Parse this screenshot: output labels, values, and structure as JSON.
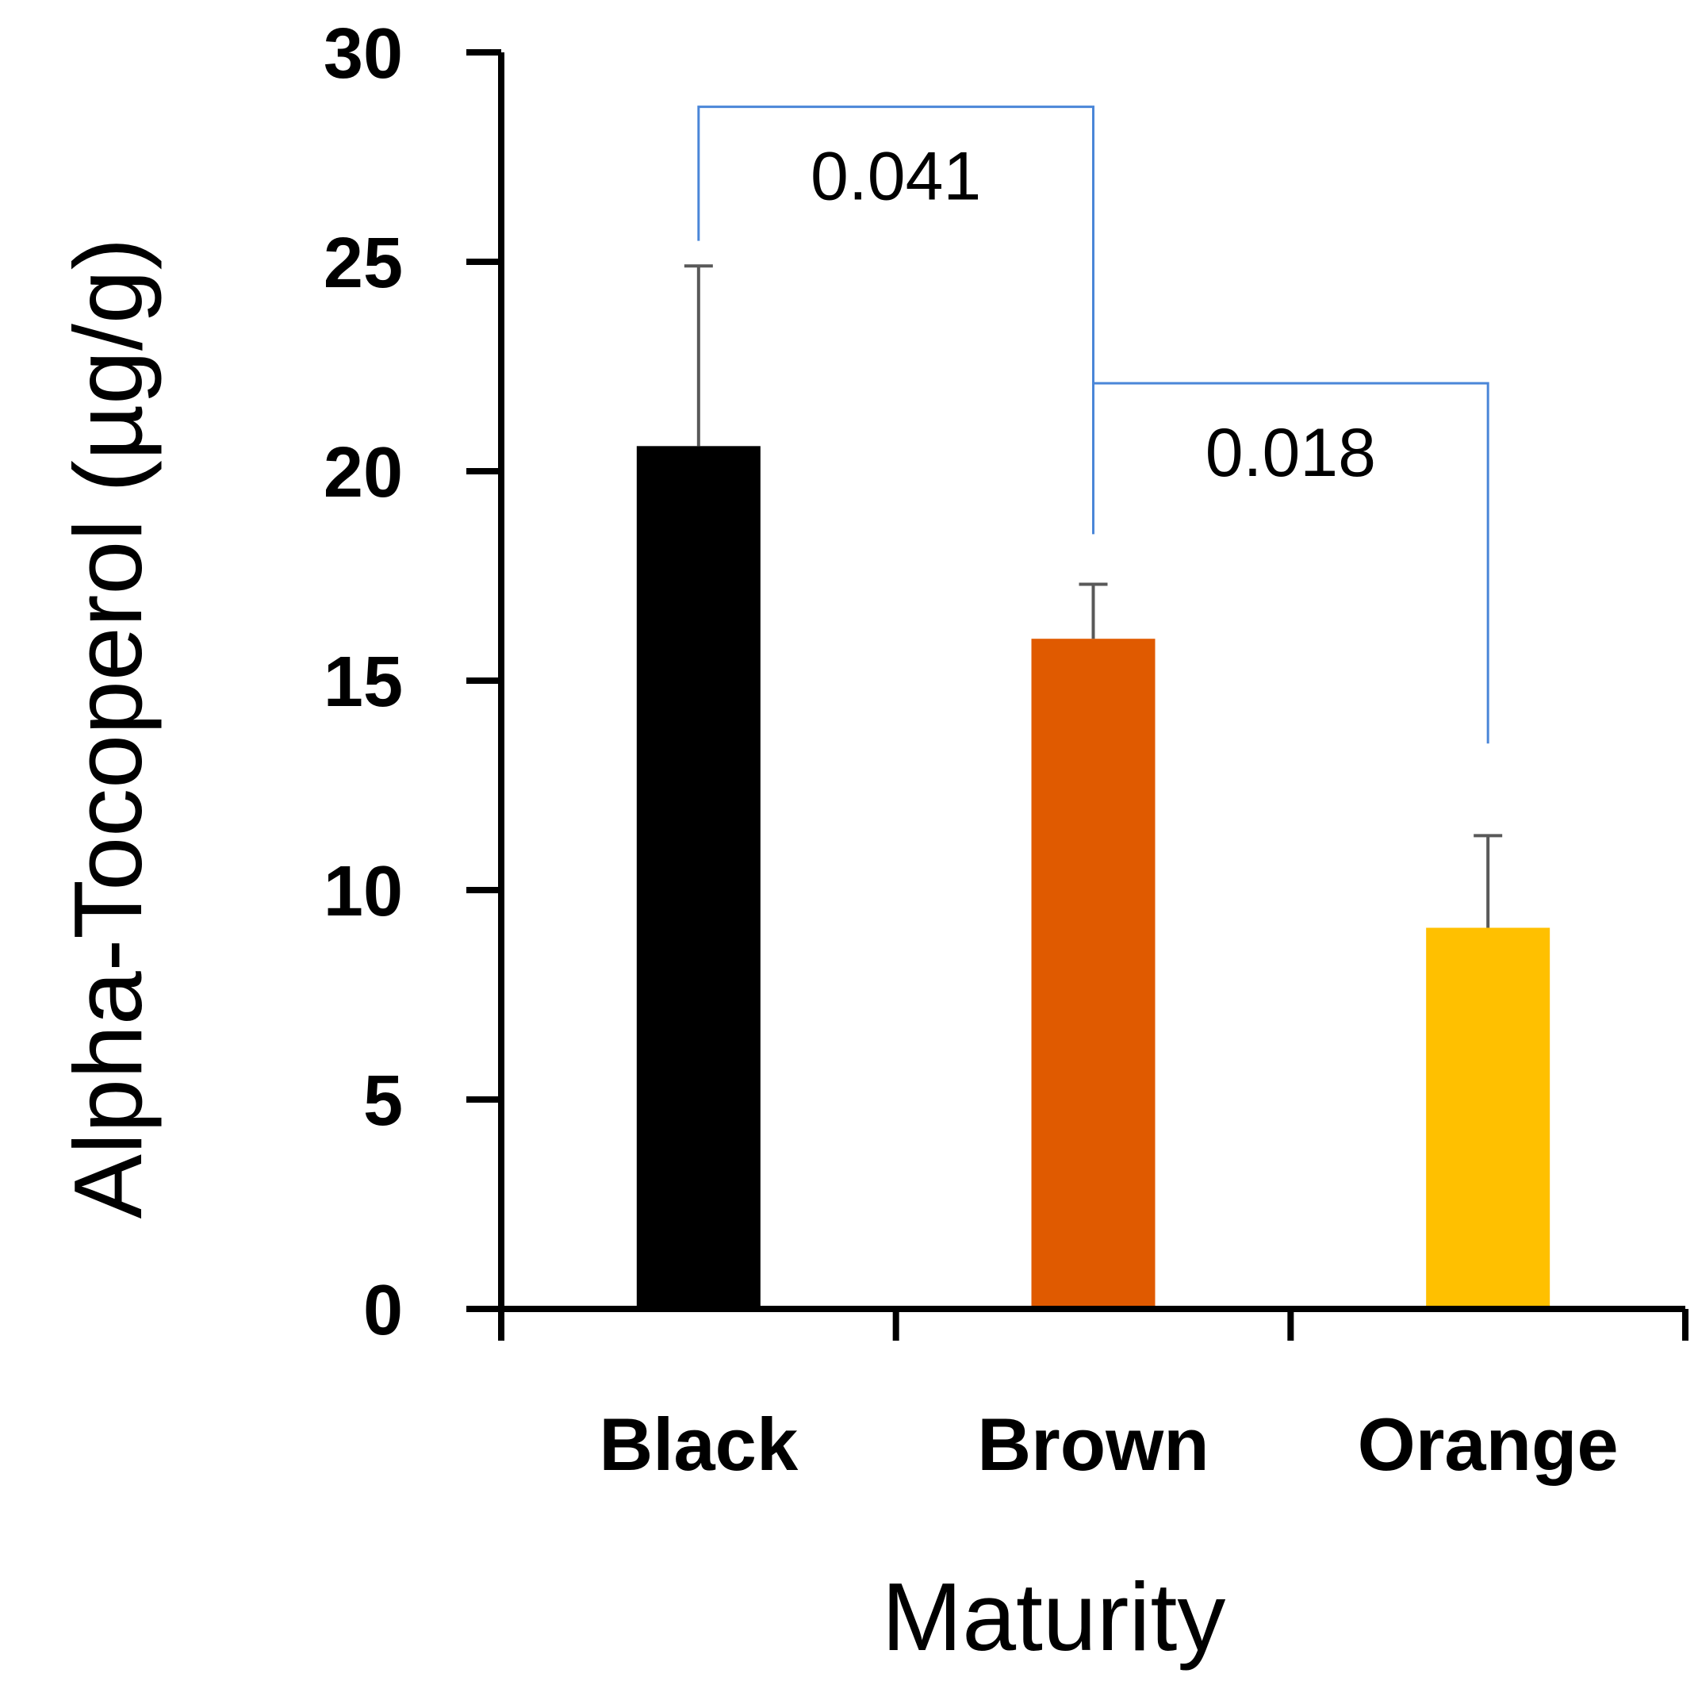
{
  "chart_data": {
    "type": "bar",
    "title": "",
    "xlabel": "Maturity",
    "ylabel": "Alpha-Tocoperol (µg/g)",
    "categories": [
      "Black",
      "Brown",
      "Orange"
    ],
    "values": [
      20.6,
      16.0,
      9.1
    ],
    "error_upper": [
      4.3,
      1.3,
      2.2
    ],
    "ylim": [
      0,
      30
    ],
    "yticks": [
      "0",
      "5",
      "10",
      "15",
      "20",
      "25",
      "30"
    ],
    "grid": false,
    "legend": "none",
    "bar_colors": [
      "#000000",
      "#e05a00",
      "#ffc000"
    ],
    "error_bar_color": "#595959",
    "bracket_color": "#4a86d8",
    "significance": [
      {
        "from": "Black",
        "to": "Brown",
        "p_value": "0.041",
        "bracket_y": 28.7,
        "left_drop_y": 25.5,
        "right_drop_y": 18.5
      },
      {
        "from": "Brown",
        "to": "Orange",
        "p_value": "0.018",
        "bracket_y": 22.1,
        "left_drop_y": 18.5,
        "right_drop_y": 13.5
      }
    ]
  }
}
